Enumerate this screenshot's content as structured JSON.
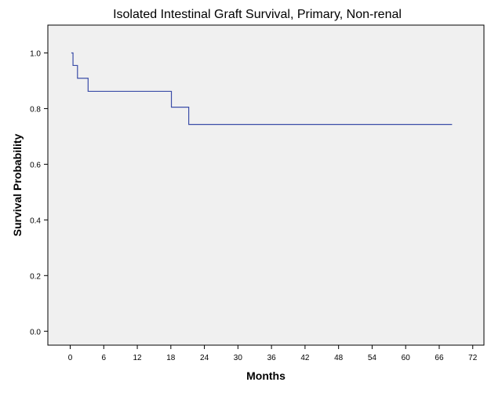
{
  "chart_data": {
    "type": "line",
    "step": true,
    "title": "Isolated Intestinal Graft Survival, Primary, Non-renal",
    "xlabel": "Months",
    "ylabel": "Survival Probability",
    "xlim": [
      -4,
      74
    ],
    "ylim": [
      -0.05,
      1.1
    ],
    "xticks": [
      0,
      6,
      12,
      18,
      24,
      30,
      36,
      42,
      48,
      54,
      60,
      66,
      72
    ],
    "yticks": [
      0.0,
      0.2,
      0.4,
      0.6,
      0.8,
      1.0
    ],
    "ytick_labels": [
      "0.0",
      "0.2",
      "0.4",
      "0.6",
      "0.8",
      "1.0"
    ],
    "grid": false,
    "series": [
      {
        "color": "#3B4DA8",
        "x": [
          0.2,
          0.5,
          1.3,
          3.2,
          18.1,
          21.2,
          68.3
        ],
        "y": [
          1.0,
          0.955,
          0.909,
          0.862,
          0.805,
          0.743,
          0.743
        ]
      }
    ]
  },
  "colors": {
    "plot_background": "#f0f0f0",
    "axis": "#000000",
    "series": "#3B4DA8"
  }
}
